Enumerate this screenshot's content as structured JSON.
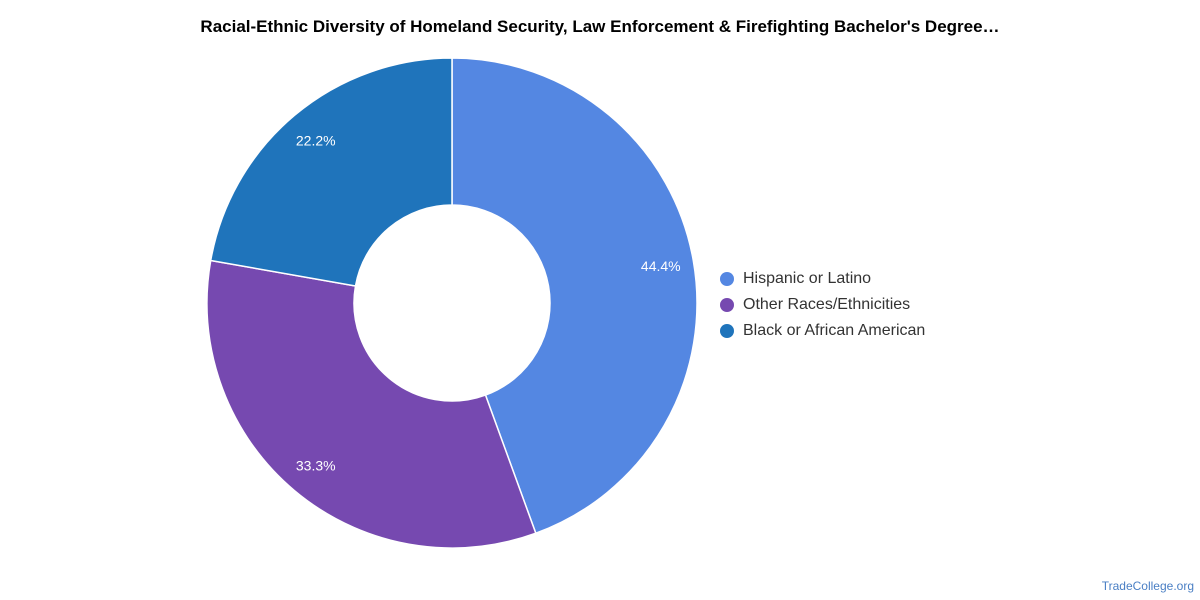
{
  "chart_data": {
    "type": "pie",
    "donut": true,
    "title": "Racial-Ethnic Diversity of Homeland Security, Law Enforcement & Firefighting Bachelor's Degree…",
    "slices": [
      {
        "label": "Hispanic or Latino",
        "value": 44.4,
        "value_label": "44.4%",
        "color": "#5487e2"
      },
      {
        "label": "Other Races/Ethnicities",
        "value": 33.3,
        "value_label": "33.3%",
        "color": "#7649b0"
      },
      {
        "label": "Black or African American",
        "value": 22.2,
        "value_label": "22.2%",
        "color": "#1f74bb"
      }
    ],
    "legend_position": "right"
  },
  "footer": {
    "credit": "TradeCollege.org"
  }
}
